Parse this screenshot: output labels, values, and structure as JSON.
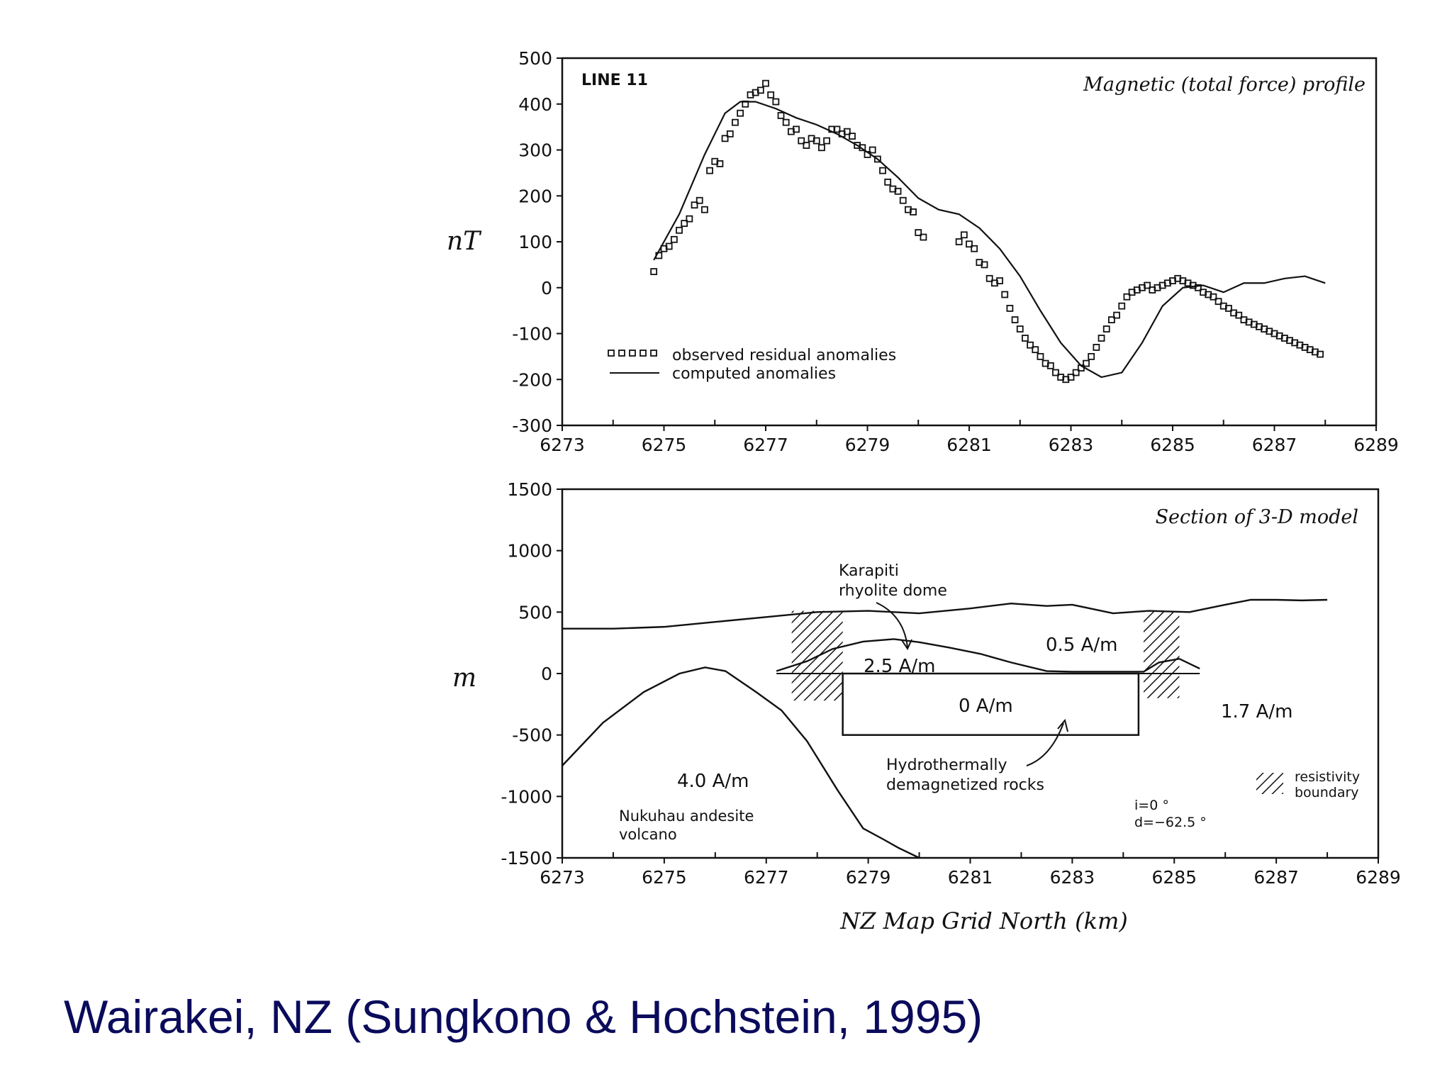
{
  "caption": "Wairakei, NZ (Sungkono & Hochstein, 1995)",
  "colors": {
    "ink": "#111111",
    "caption": "#0b0b5c"
  },
  "chart_data": [
    {
      "type": "scatter",
      "title": "Magnetic (total force) profile",
      "line_label": "LINE  11",
      "ylabel": "nT",
      "xlabel": "",
      "xlim": [
        6273,
        6289
      ],
      "ylim": [
        -300,
        500
      ],
      "xticks": [
        6273,
        6275,
        6277,
        6279,
        6281,
        6283,
        6285,
        6287,
        6289
      ],
      "yticks": [
        500,
        400,
        300,
        200,
        100,
        0,
        -100,
        -200,
        -300
      ],
      "ytick_labels": [
        "500",
        "400",
        "300",
        "200",
        "100",
        "0",
        "-100",
        "-200",
        "-300"
      ],
      "legend": [
        {
          "name": "observed  residual  anomalies",
          "marker": "square"
        },
        {
          "name": "computed  anomalies",
          "marker": "line"
        }
      ],
      "series": [
        {
          "name": "observed  residual  anomalies",
          "x": [
            6274.8,
            6274.9,
            6275.0,
            6275.1,
            6275.2,
            6275.3,
            6275.4,
            6275.5,
            6275.6,
            6275.7,
            6275.8,
            6275.9,
            6276.0,
            6276.1,
            6276.2,
            6276.3,
            6276.4,
            6276.5,
            6276.6,
            6276.7,
            6276.8,
            6276.9,
            6277.0,
            6277.1,
            6277.2,
            6277.3,
            6277.4,
            6277.5,
            6277.6,
            6277.7,
            6277.8,
            6277.9,
            6278.0,
            6278.1,
            6278.2,
            6278.3,
            6278.4,
            6278.5,
            6278.6,
            6278.7,
            6278.8,
            6278.9,
            6279.0,
            6279.1,
            6279.2,
            6279.3,
            6279.4,
            6279.5,
            6279.6,
            6279.7,
            6279.8,
            6279.9,
            6280.0,
            6280.1,
            6280.8,
            6280.9,
            6281.0,
            6281.1,
            6281.2,
            6281.3,
            6281.4,
            6281.5,
            6281.6,
            6281.7,
            6281.8,
            6281.9,
            6282.0,
            6282.1,
            6282.2,
            6282.3,
            6282.4,
            6282.5,
            6282.6,
            6282.7,
            6282.8,
            6282.9,
            6283.0,
            6283.1,
            6283.2,
            6283.3,
            6283.4,
            6283.5,
            6283.6,
            6283.7,
            6283.8,
            6283.9,
            6284.0,
            6284.1,
            6284.2,
            6284.3,
            6284.4,
            6284.5,
            6284.6,
            6284.7,
            6284.8,
            6284.9,
            6285.0,
            6285.1,
            6285.2,
            6285.3,
            6285.4,
            6285.5,
            6285.6,
            6285.7,
            6285.8,
            6285.9,
            6286.0,
            6286.1,
            6286.2,
            6286.3,
            6286.4,
            6286.5,
            6286.6,
            6286.7,
            6286.8,
            6286.9,
            6287.0,
            6287.1,
            6287.2,
            6287.3,
            6287.4,
            6287.5,
            6287.6,
            6287.7,
            6287.8,
            6287.9
          ],
          "y": [
            35,
            70,
            85,
            90,
            105,
            125,
            140,
            150,
            180,
            190,
            170,
            255,
            275,
            270,
            325,
            335,
            360,
            380,
            400,
            420,
            425,
            430,
            445,
            420,
            405,
            375,
            360,
            340,
            345,
            320,
            310,
            325,
            320,
            305,
            320,
            345,
            345,
            335,
            340,
            330,
            310,
            305,
            290,
            300,
            280,
            255,
            230,
            215,
            210,
            190,
            170,
            165,
            120,
            110,
            100,
            115,
            95,
            85,
            55,
            50,
            20,
            10,
            15,
            -15,
            -45,
            -70,
            -90,
            -110,
            -125,
            -135,
            -150,
            -165,
            -170,
            -185,
            -195,
            -200,
            -195,
            -185,
            -175,
            -165,
            -150,
            -130,
            -110,
            -90,
            -70,
            -60,
            -40,
            -20,
            -10,
            -5,
            0,
            5,
            -5,
            0,
            5,
            10,
            15,
            20,
            15,
            10,
            5,
            0,
            -10,
            -15,
            -20,
            -30,
            -40,
            -45,
            -55,
            -60,
            -70,
            -75,
            -80,
            -85,
            -90,
            -95,
            -100,
            -105,
            -110,
            -115,
            -120,
            -125,
            -130,
            -135,
            -140,
            -145
          ]
        },
        {
          "name": "computed  anomalies",
          "x": [
            6274.8,
            6275.3,
            6275.8,
            6276.2,
            6276.5,
            6276.8,
            6277.2,
            6277.6,
            6278.0,
            6278.4,
            6278.8,
            6279.2,
            6279.6,
            6280.0,
            6280.4,
            6280.8,
            6281.2,
            6281.6,
            6282.0,
            6282.4,
            6282.8,
            6283.2,
            6283.6,
            6284.0,
            6284.4,
            6284.8,
            6285.2,
            6285.6,
            6286.0,
            6286.4,
            6286.8,
            6287.2,
            6287.6,
            6288.0
          ],
          "y": [
            60,
            160,
            290,
            380,
            405,
            405,
            390,
            370,
            355,
            335,
            310,
            280,
            240,
            195,
            170,
            160,
            130,
            85,
            25,
            -50,
            -120,
            -170,
            -195,
            -185,
            -120,
            -40,
            0,
            5,
            -10,
            10,
            10,
            20,
            25,
            10
          ]
        }
      ]
    },
    {
      "type": "line",
      "title": "Section  of  3-D  model",
      "ylabel": "m",
      "xlabel": "NZ  Map  Grid  North  (km)",
      "xlim": [
        6273,
        6289
      ],
      "ylim": [
        -1500,
        1500
      ],
      "xticks": [
        6273,
        6275,
        6277,
        6279,
        6281,
        6283,
        6285,
        6287,
        6289
      ],
      "yticks": [
        1500,
        1000,
        500,
        0,
        -500,
        -1000,
        -1500
      ],
      "ytick_labels": [
        "1500",
        "1000",
        "500",
        "0",
        "-500",
        "-1000",
        "-1500"
      ],
      "series": [
        {
          "name": "topography",
          "x": [
            6273,
            6274,
            6275,
            6276,
            6277,
            6278,
            6279,
            6280,
            6281,
            6281.8,
            6282.5,
            6283,
            6283.8,
            6284.5,
            6285.3,
            6286,
            6286.5,
            6287,
            6287.5,
            6288
          ],
          "y": [
            365,
            365,
            380,
            420,
            460,
            500,
            510,
            490,
            530,
            570,
            550,
            560,
            490,
            510,
            500,
            560,
            600,
            600,
            595,
            600
          ]
        },
        {
          "name": "dome-boundary",
          "x": [
            6277.2,
            6277.8,
            6278.3,
            6278.9,
            6279.5,
            6280.0,
            6280.6,
            6281.2,
            6281.8,
            6282.5,
            6283,
            6283.7,
            6284.4,
            6284.7,
            6285.1,
            6285.5
          ],
          "y": [
            20,
            100,
            200,
            260,
            280,
            255,
            210,
            160,
            90,
            20,
            15,
            15,
            15,
            90,
            120,
            40
          ]
        },
        {
          "name": "nukuhau-volcano",
          "x": [
            6273,
            6273.8,
            6274.6,
            6275.3,
            6275.8,
            6276.2,
            6276.8,
            6277.3,
            6277.8,
            6278.4,
            6278.9,
            6279.3,
            6279.6,
            6280.0
          ],
          "y": [
            -750,
            -400,
            -150,
            0,
            50,
            20,
            -150,
            -300,
            -550,
            -950,
            -1260,
            -1350,
            -1420,
            -1500
          ]
        }
      ],
      "rectangles": [
        {
          "name": "0 A/m block",
          "x0": 6278.5,
          "x1": 6284.3,
          "y0": -500,
          "y1": 0
        }
      ],
      "hatched_zones": [
        {
          "name": "resistivity boundary west",
          "x0": 6277.5,
          "x1": 6278.5,
          "y0": -220,
          "y1": 510
        },
        {
          "name": "resistivity boundary east",
          "x0": 6284.4,
          "x1": 6285.1,
          "y0": -200,
          "y1": 510
        }
      ],
      "annotations": {
        "karapiti_line1": "Karapiti",
        "karapiti_line2": "rhyolite  dome",
        "mag_25": "2.5  A/m",
        "mag_05": "0.5  A/m",
        "mag_0": "0  A/m",
        "mag_17": "1.7  A/m",
        "mag_40": "4.0  A/m",
        "nukuhau_line1": "Nukuhau  andesite",
        "nukuhau_line2": "volcano",
        "hydro_line1": "Hydrothermally",
        "hydro_line2": "demagnetized  rocks",
        "legend_line1": "resistivity",
        "legend_line2": "boundary",
        "incl": "i=0 °",
        "decl": "d=−62.5 °"
      }
    }
  ]
}
